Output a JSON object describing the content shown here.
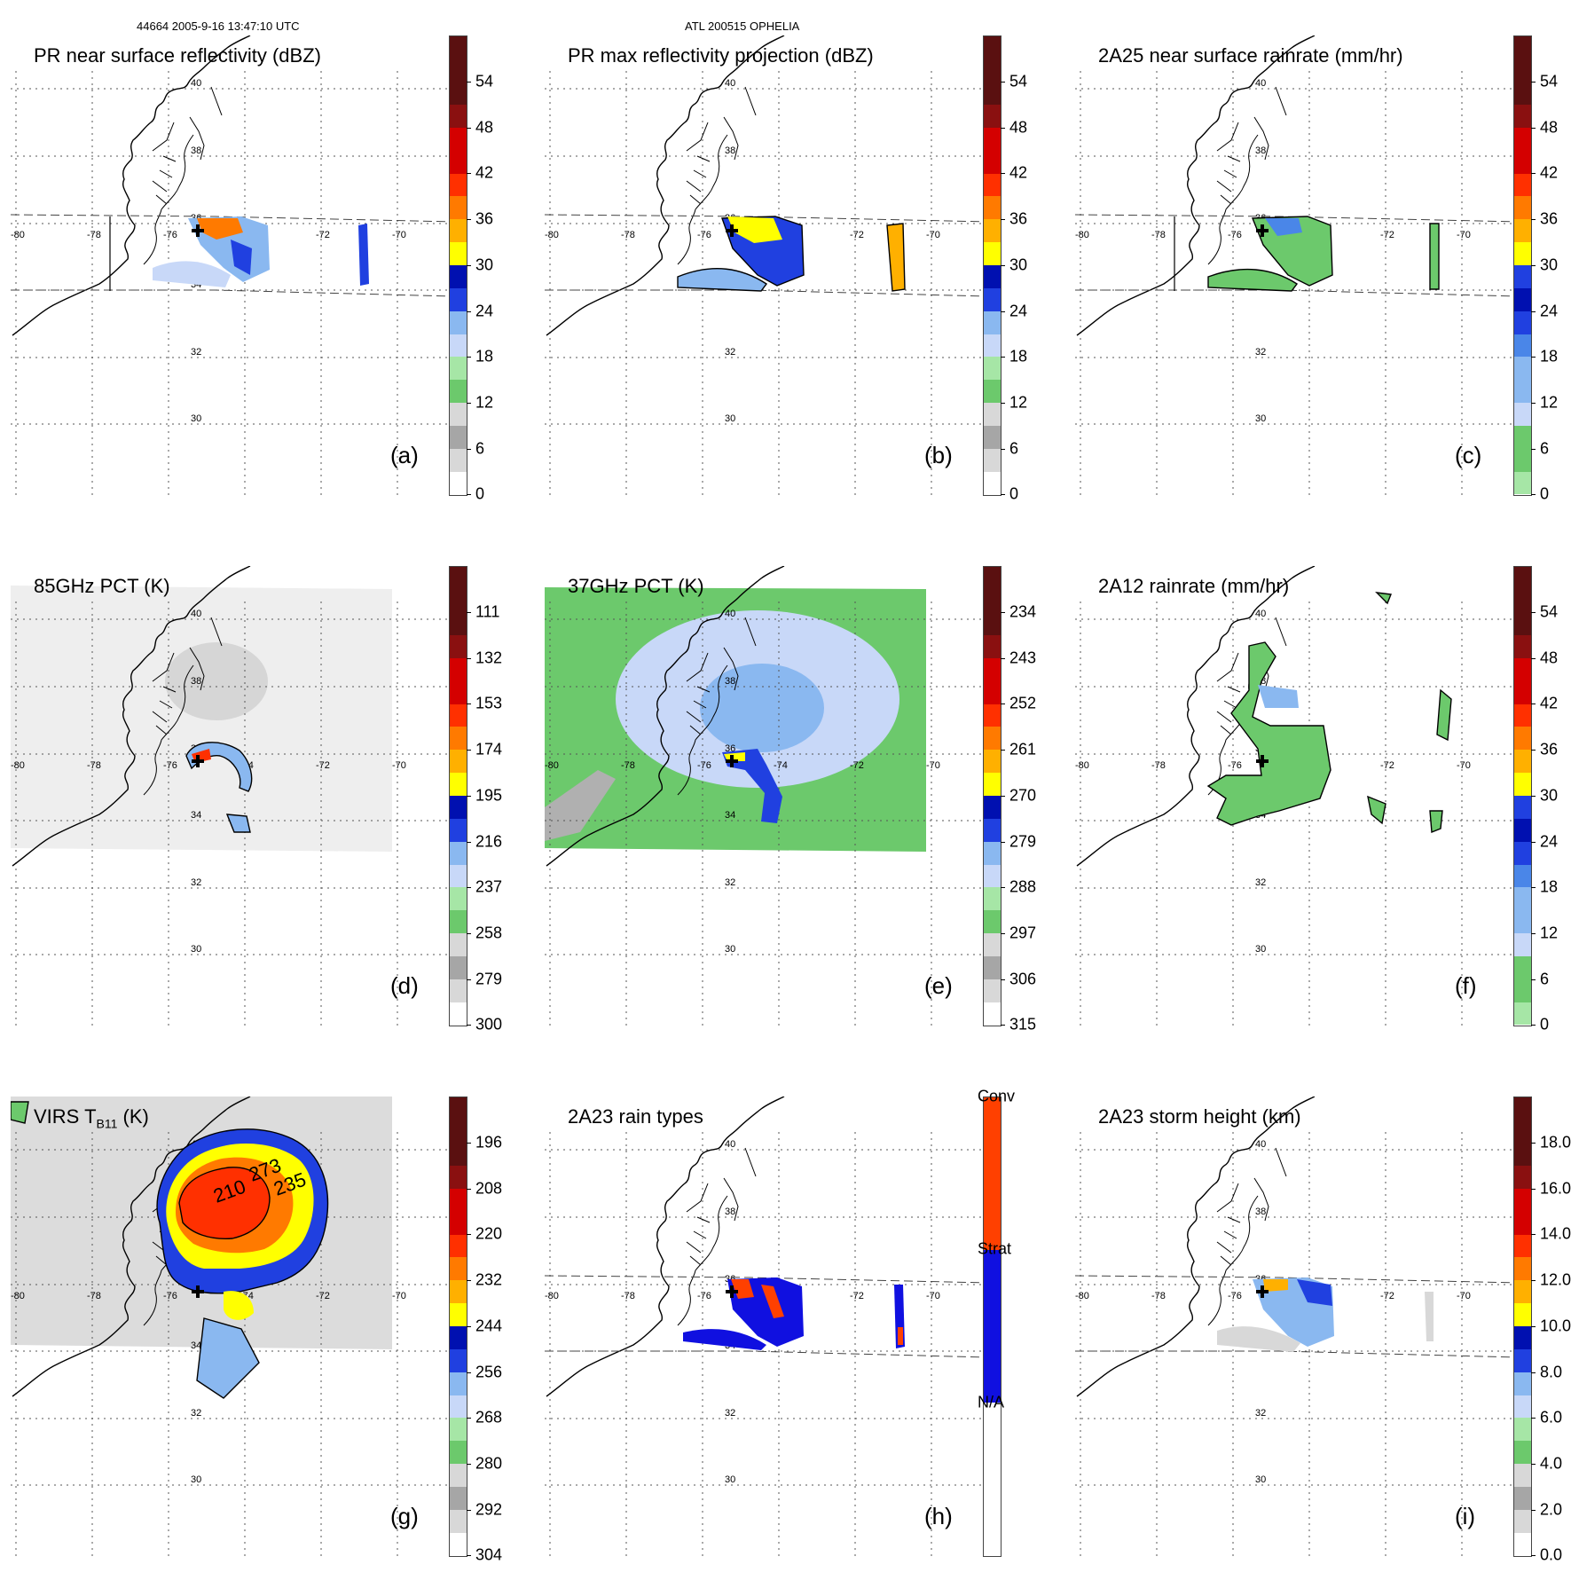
{
  "header": {
    "left": "44664 2005-9-16 13:47:10 UTC",
    "center": "ATL 200515 OPHELIA"
  },
  "map": {
    "lon_labels": [
      "-80",
      "-78",
      "-76",
      "-74",
      "-72",
      "-70"
    ],
    "lat_labels": [
      "40",
      "38",
      "36",
      "34",
      "32",
      "30"
    ],
    "storm_marker": "storm-center-cross"
  },
  "colors": {
    "white": "#ffffff",
    "gray_light": "#d8d8d8",
    "gray": "#a6a6a6",
    "green_light": "#a6e6a6",
    "green": "#6cc96c",
    "blue_pale": "#c8d8f8",
    "blue_light": "#8ab8f0",
    "blue_mid": "#4a86e8",
    "blue": "#2040e0",
    "blue_dark": "#0010b0",
    "yellow": "#ffff00",
    "orange_light": "#ffb000",
    "orange": "#ff7a00",
    "red_orange": "#ff3000",
    "red": "#d40000",
    "dark_red": "#8a1010",
    "maroon": "#5a1010",
    "conv": "#ff4000",
    "strat": "#1010e0",
    "na": "#ffffff"
  },
  "panels": [
    {
      "id": "a",
      "title": "PR near surface reflectivity (dBZ)",
      "letter": "(a)",
      "colorbar": {
        "labels": [
          "0",
          "6",
          "12",
          "18",
          "24",
          "30",
          "36",
          "42",
          "48",
          "54"
        ]
      }
    },
    {
      "id": "b",
      "title": "PR max reflectivity projection (dBZ)",
      "letter": "(b)",
      "colorbar": {
        "labels": [
          "0",
          "6",
          "12",
          "18",
          "24",
          "30",
          "36",
          "42",
          "48",
          "54"
        ]
      }
    },
    {
      "id": "c",
      "title": "2A25 near surface rainrate (mm/hr)",
      "letter": "(c)",
      "colorbar": {
        "labels": [
          "0",
          "6",
          "12",
          "18",
          "24",
          "30",
          "36",
          "42",
          "48",
          "54"
        ]
      }
    },
    {
      "id": "d",
      "title": "85GHz PCT (K)",
      "letter": "(d)",
      "colorbar": {
        "labels": [
          "300",
          "279",
          "258",
          "237",
          "216",
          "195",
          "174",
          "153",
          "132",
          "111"
        ]
      }
    },
    {
      "id": "e",
      "title": "37GHz PCT (K)",
      "letter": "(e)",
      "colorbar": {
        "labels": [
          "315",
          "306",
          "297",
          "288",
          "279",
          "270",
          "261",
          "252",
          "243",
          "234"
        ]
      }
    },
    {
      "id": "f",
      "title": "2A12 rainrate (mm/hr)",
      "letter": "(f)",
      "colorbar": {
        "labels": [
          "0",
          "6",
          "12",
          "18",
          "24",
          "30",
          "36",
          "42",
          "48",
          "54"
        ]
      }
    },
    {
      "id": "g",
      "title_main": "VIRS T",
      "title_sub": "B11",
      "title_end": " (K)",
      "letter": "(g)",
      "contour_labels": [
        "273",
        "210",
        "235"
      ],
      "colorbar": {
        "labels": [
          "304",
          "292",
          "280",
          "268",
          "256",
          "244",
          "232",
          "220",
          "208",
          "196"
        ]
      }
    },
    {
      "id": "h",
      "title": "2A23 rain types",
      "letter": "(h)",
      "colorbar": {
        "labels": [
          "N/A",
          "Strat",
          "Conv"
        ]
      }
    },
    {
      "id": "i",
      "title": "2A23 storm height (km)",
      "letter": "(i)",
      "colorbar": {
        "labels": [
          "0.0",
          "2.0",
          "4.0",
          "6.0",
          "8.0",
          "10.0",
          "12.0",
          "14.0",
          "16.0",
          "18.0"
        ]
      }
    }
  ]
}
